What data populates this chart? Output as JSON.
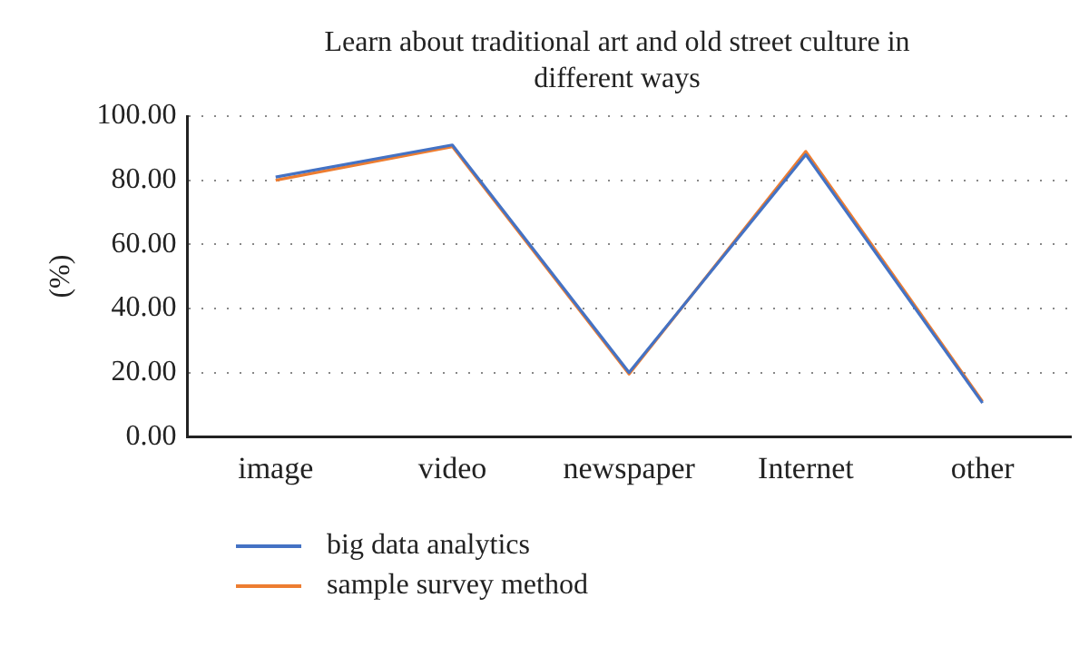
{
  "chart_data": {
    "type": "line",
    "title": "Learn about traditional art and old street culture in different ways",
    "ylabel": "(%)",
    "categories": [
      "image",
      "video",
      "newspaper",
      "Internet",
      "other"
    ],
    "series": [
      {
        "name": "big data analytics",
        "color": "#4472c4",
        "values": [
          81,
          91,
          20,
          88,
          10.5
        ]
      },
      {
        "name": "sample survey method",
        "color": "#ed7d31",
        "values": [
          80,
          90.5,
          19.5,
          89,
          11
        ]
      }
    ],
    "ylim": [
      0,
      100
    ],
    "yticks": [
      {
        "value": 0,
        "label": "0.00"
      },
      {
        "value": 20,
        "label": "20.00"
      },
      {
        "value": 40,
        "label": "40.00"
      },
      {
        "value": 60,
        "label": "60.00"
      },
      {
        "value": 80,
        "label": "80.00"
      },
      {
        "value": 100,
        "label": "100.00"
      }
    ],
    "grid": "y",
    "legend": "bottom left",
    "marker": "none",
    "line_style": "solid"
  }
}
